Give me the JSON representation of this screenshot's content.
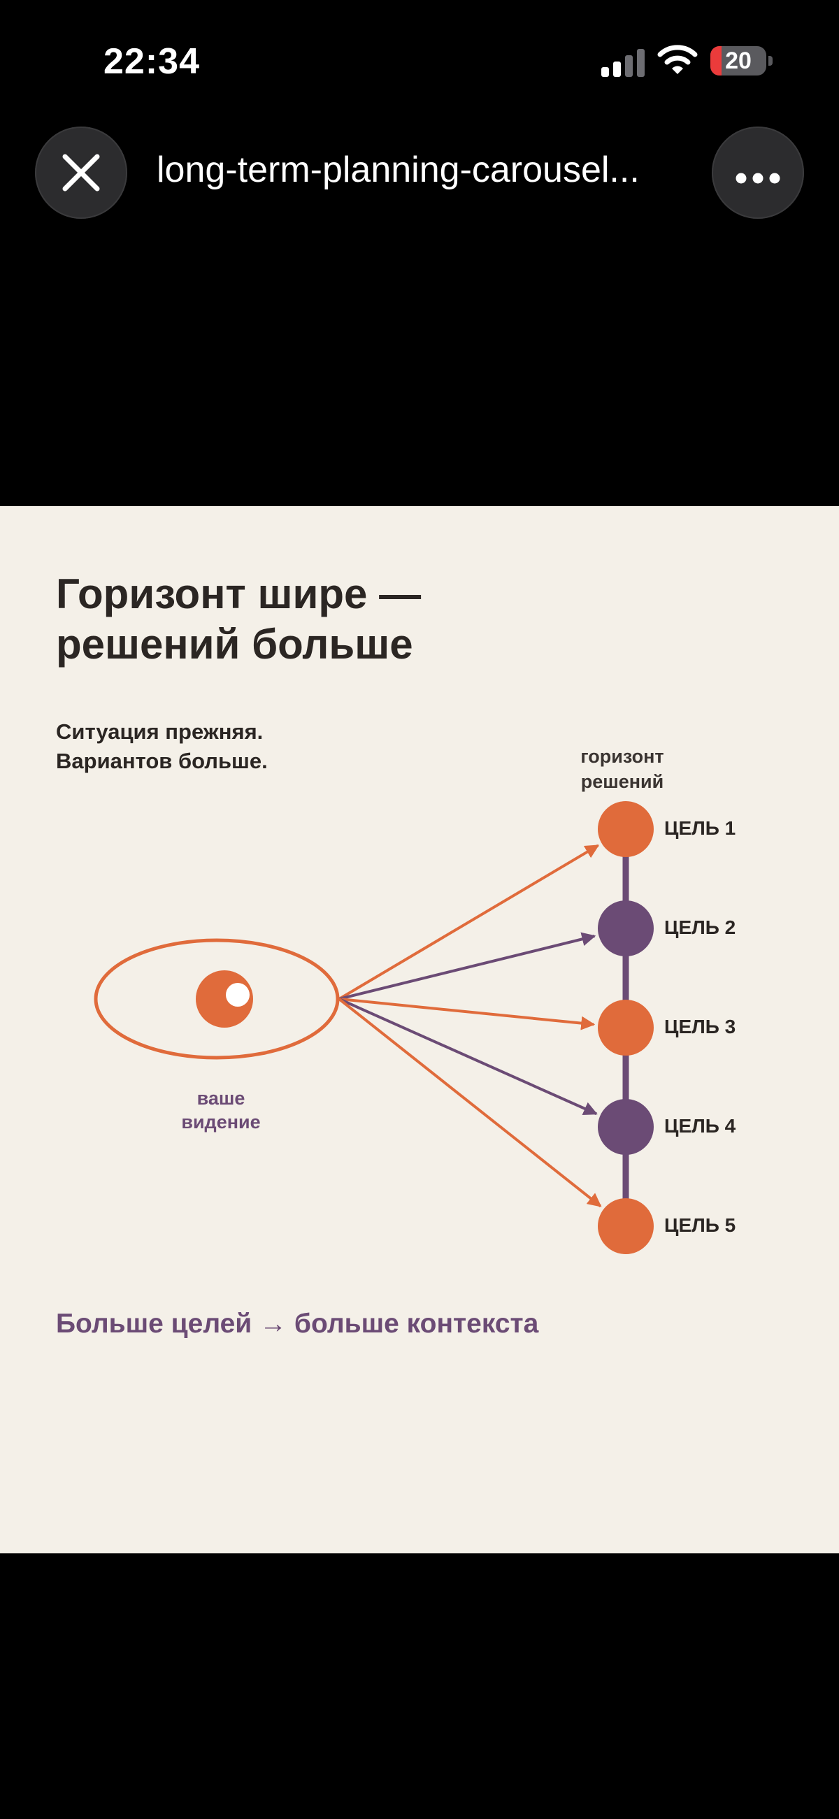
{
  "status_bar": {
    "time": "22:34",
    "battery_level": "20",
    "battery_fraction": 0.2,
    "icons": [
      "signal-icon",
      "wifi-icon",
      "battery-icon"
    ]
  },
  "topbar": {
    "title": "long-term-planning-carousel...",
    "close_icon": "close-icon",
    "more_icon": "more-icon"
  },
  "slide": {
    "title_line1": "Горизонт шире —",
    "title_line2": "решений больше",
    "subtitle_line1": "Ситуация прежняя.",
    "subtitle_line2": "Вариантов больше.",
    "horizon_label_line1": "горизонт",
    "horizon_label_line2": "решений",
    "vision_label_line1": "ваше",
    "vision_label_line2": "видение",
    "goals": [
      {
        "label": "ЦЕЛЬ 1",
        "color": "#e06b3b"
      },
      {
        "label": "ЦЕЛЬ 2",
        "color": "#6b4b75"
      },
      {
        "label": "ЦЕЛЬ 3",
        "color": "#e06b3b"
      },
      {
        "label": "ЦЕЛЬ 4",
        "color": "#6b4b75"
      },
      {
        "label": "ЦЕЛЬ 5",
        "color": "#e06b3b"
      }
    ],
    "footer": "Больше целей → больше контекста"
  },
  "colors": {
    "accent_orange": "#e06b3b",
    "accent_purple": "#6b4b75",
    "slide_background": "#f4f0e8",
    "text_dark": "#2b2623"
  }
}
